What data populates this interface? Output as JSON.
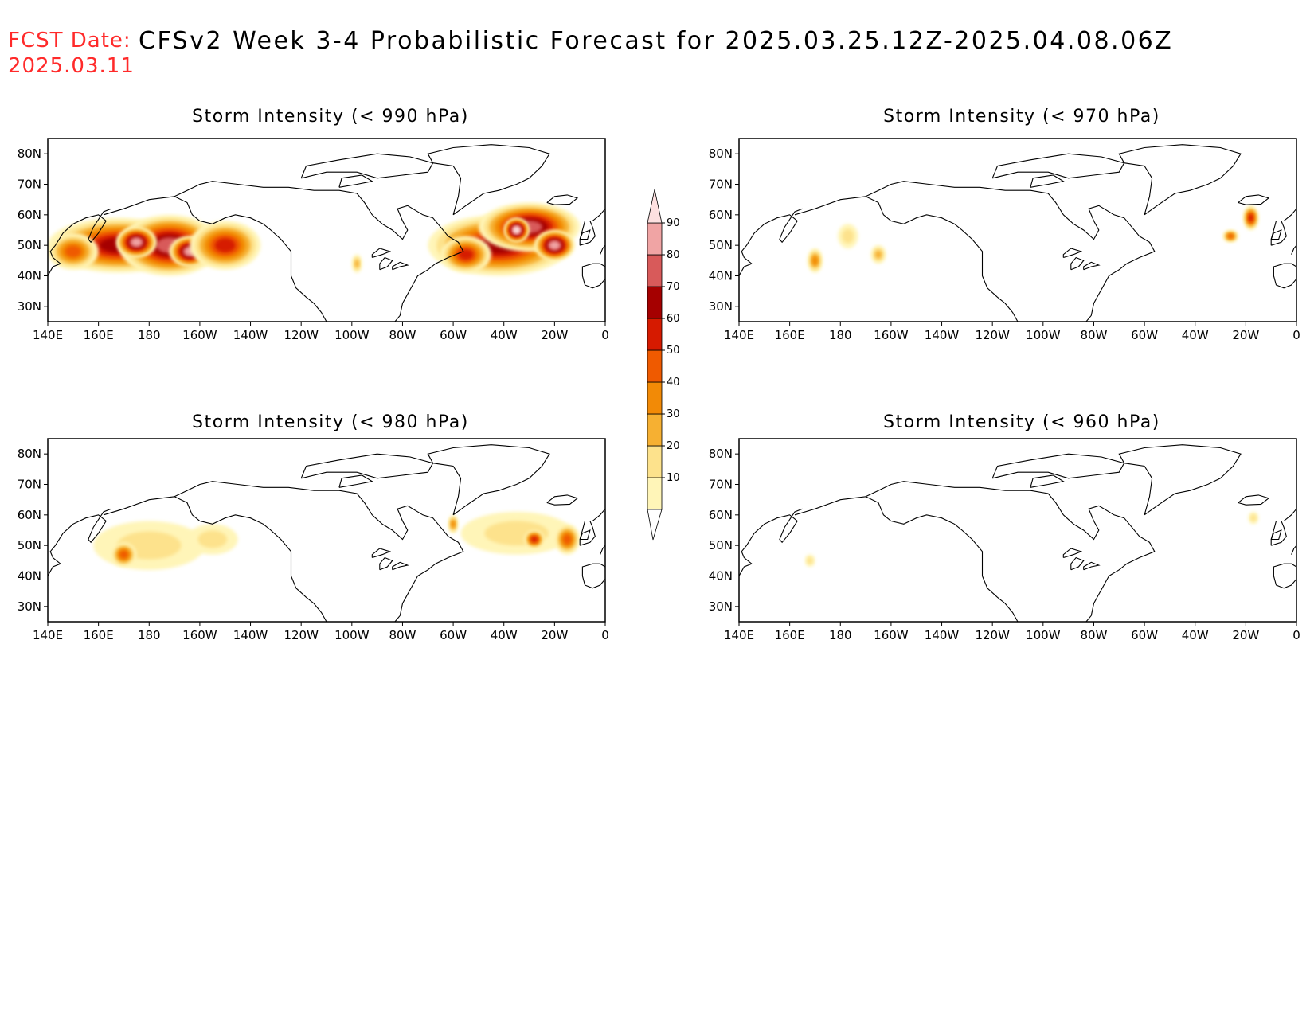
{
  "header": {
    "fcst_label": "FCST Date:",
    "fcst_date": "2025.03.11",
    "title": "CFSv2 Week 3-4 Probabilistic Forecast for 2025.03.25.12Z-2025.04.08.06Z"
  },
  "axes": {
    "lon_ticks": [
      "140E",
      "160E",
      "180",
      "160W",
      "140W",
      "120W",
      "100W",
      "80W",
      "60W",
      "40W",
      "20W",
      "0"
    ],
    "lat_ticks": [
      "80N",
      "70N",
      "60N",
      "50N",
      "40N",
      "30N"
    ]
  },
  "colorbar": {
    "labels": [
      "10",
      "20",
      "30",
      "40",
      "50",
      "60",
      "70",
      "80",
      "90"
    ],
    "colors": [
      "#fff5b8",
      "#fde28c",
      "#f6b032",
      "#f28a06",
      "#ef5a00",
      "#d61a00",
      "#a50000",
      "#d85a5a",
      "#f0a4a4",
      "#fde0e0"
    ]
  },
  "panels": [
    {
      "id": "p990",
      "title": "Storm Intensity (< 990 hPa)",
      "blobs": [
        {
          "lon": 168,
          "lat": 50,
          "rlon": 28,
          "rlat": 9,
          "level": 6
        },
        {
          "lon": 188,
          "lat": 50,
          "rlon": 20,
          "rlat": 10,
          "level": 7
        },
        {
          "lon": 175,
          "lat": 51,
          "rlon": 8,
          "rlat": 5,
          "level": 8
        },
        {
          "lon": 196,
          "lat": 48,
          "rlon": 8,
          "rlat": 5,
          "level": 8
        },
        {
          "lon": 210,
          "lat": 50,
          "rlon": 14,
          "rlat": 8,
          "level": 5
        },
        {
          "lon": 150,
          "lat": 48,
          "rlon": 10,
          "rlat": 6,
          "level": 4
        },
        {
          "lon": 262,
          "lat": 44,
          "rlon": 2,
          "rlat": 3,
          "level": 2
        },
        {
          "lon": 318,
          "lat": 50,
          "rlon": 28,
          "rlat": 10,
          "level": 6
        },
        {
          "lon": 330,
          "lat": 56,
          "rlon": 20,
          "rlat": 8,
          "level": 7
        },
        {
          "lon": 325,
          "lat": 55,
          "rlon": 5,
          "rlat": 4,
          "level": 9
        },
        {
          "lon": 340,
          "lat": 50,
          "rlon": 8,
          "rlat": 5,
          "level": 8
        },
        {
          "lon": 305,
          "lat": 47,
          "rlon": 10,
          "rlat": 6,
          "level": 5
        }
      ]
    },
    {
      "id": "p970",
      "title": "Storm Intensity (< 970 hPa)",
      "blobs": [
        {
          "lon": 170,
          "lat": 45,
          "rlon": 3,
          "rlat": 4,
          "level": 3
        },
        {
          "lon": 183,
          "lat": 53,
          "rlon": 4,
          "rlat": 4,
          "level": 1
        },
        {
          "lon": 195,
          "lat": 47,
          "rlon": 3,
          "rlat": 3,
          "level": 2
        },
        {
          "lon": 334,
          "lat": 53,
          "rlon": 3,
          "rlat": 2,
          "level": 4
        },
        {
          "lon": 342,
          "lat": 59,
          "rlon": 3,
          "rlat": 4,
          "level": 5
        }
      ]
    },
    {
      "id": "p980",
      "title": "Storm Intensity (< 980 hPa)",
      "blobs": [
        {
          "lon": 180,
          "lat": 50,
          "rlon": 22,
          "rlat": 8,
          "level": 1
        },
        {
          "lon": 170,
          "lat": 47,
          "rlon": 5,
          "rlat": 4,
          "level": 4
        },
        {
          "lon": 205,
          "lat": 52,
          "rlon": 10,
          "rlat": 5,
          "level": 1
        },
        {
          "lon": 325,
          "lat": 54,
          "rlon": 22,
          "rlat": 7,
          "level": 1
        },
        {
          "lon": 332,
          "lat": 52,
          "rlon": 4,
          "rlat": 3,
          "level": 5
        },
        {
          "lon": 345,
          "lat": 52,
          "rlon": 5,
          "rlat": 5,
          "level": 4
        },
        {
          "lon": 300,
          "lat": 57,
          "rlon": 2,
          "rlat": 3,
          "level": 3
        }
      ]
    },
    {
      "id": "p960",
      "title": "Storm Intensity (< 960 hPa)",
      "blobs": [
        {
          "lon": 168,
          "lat": 45,
          "rlon": 2,
          "rlat": 2,
          "level": 1
        },
        {
          "lon": 343,
          "lat": 59,
          "rlon": 2,
          "rlat": 2,
          "level": 1
        }
      ]
    }
  ]
}
